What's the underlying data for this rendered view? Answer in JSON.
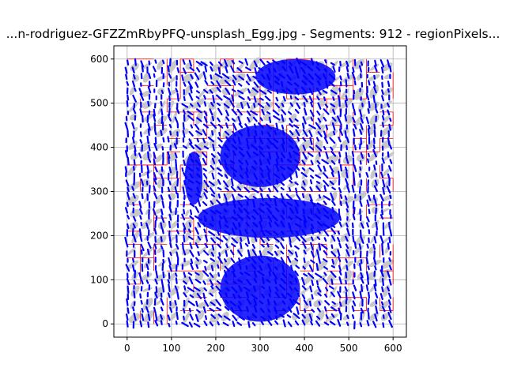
{
  "chart_data": {
    "type": "scatter",
    "title": "...n-rodriguez-GFZZmRbyPFQ-unsplash_Egg.jpg - Segments: 912 - regionPixels...",
    "xlim": [
      -30,
      630
    ],
    "ylim": [
      630,
      -30
    ],
    "y_inverted": true,
    "x_ticks": [
      0,
      100,
      200,
      300,
      400,
      500,
      600
    ],
    "y_ticks": [
      0,
      100,
      200,
      300,
      400,
      500,
      600
    ],
    "x_tick_labels": [
      "0",
      "100",
      "200",
      "300",
      "400",
      "500",
      "600"
    ],
    "y_tick_labels": [
      "0",
      "100",
      "200",
      "300",
      "400",
      "500",
      "600"
    ],
    "grid": true,
    "colors": {
      "segment_fill": "#c8c8c8",
      "segment_outline": "#ff0000",
      "orientation_marks": "#0000ff",
      "grid": "#b0b0b0",
      "axes": "#000000"
    },
    "segments": 912,
    "image_size": [
      600,
      600
    ]
  }
}
